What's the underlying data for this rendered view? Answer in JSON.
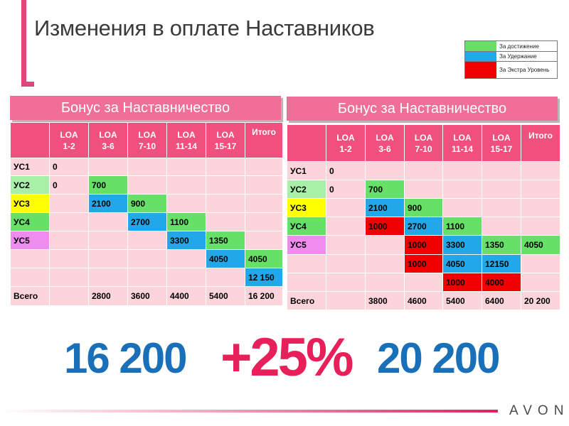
{
  "title": "Изменения в оплате Наставников",
  "legend": [
    {
      "label": "За достижение",
      "color": "#66e066"
    },
    {
      "label": "За Удержание",
      "color": "#22a8e8"
    },
    {
      "label": "За Экстра Уровень",
      "color": "#f00000"
    }
  ],
  "left_table": {
    "banner": "Бонус за Наставничество",
    "headers": [
      "",
      "LOA\n1-2",
      "LOA\n3-6",
      "LOA\n7-10",
      "LOA\n11-14",
      "LOA\n15-17",
      "Итого"
    ],
    "rows": [
      {
        "label": "УС1",
        "cells": [
          "0",
          "",
          "",
          "",
          "",
          ""
        ]
      },
      {
        "label": "УС2",
        "cells": [
          "0",
          "700",
          "",
          "",
          "",
          ""
        ]
      },
      {
        "label": "УС3",
        "cells": [
          "",
          "2100",
          "900",
          "",
          "",
          ""
        ]
      },
      {
        "label": "УС4",
        "cells": [
          "",
          "",
          "2700",
          "1100",
          "",
          ""
        ]
      },
      {
        "label": "УС5",
        "cells": [
          "",
          "",
          "",
          "3300",
          "1350",
          ""
        ]
      },
      {
        "label": "",
        "cells": [
          "",
          "",
          "",
          "",
          "4050",
          "4050"
        ]
      },
      {
        "label": "",
        "cells": [
          "",
          "",
          "",
          "",
          "",
          "12 150"
        ]
      },
      {
        "label": "Всего",
        "cells": [
          "",
          "2800",
          "3600",
          "4400",
          "5400",
          "16 200"
        ]
      }
    ]
  },
  "right_table": {
    "banner": "Бонус за Наставничество",
    "headers": [
      "",
      "LOA\n1-2",
      "LOA\n3-6",
      "LOA\n7-10",
      "LOA\n11-14",
      "LOA\n15-17",
      "Итого"
    ],
    "rows": [
      {
        "label": "УС1",
        "cells": [
          "0",
          "",
          "",
          "",
          "",
          ""
        ]
      },
      {
        "label": "УС2",
        "cells": [
          "0",
          "700",
          "",
          "",
          "",
          ""
        ]
      },
      {
        "label": "УС3",
        "cells": [
          "",
          "2100",
          "900",
          "",
          "",
          ""
        ]
      },
      {
        "label": "УС4",
        "cells": [
          "",
          "1000",
          "2700",
          "1100",
          "",
          ""
        ]
      },
      {
        "label": "УС5",
        "cells": [
          "",
          "",
          "1000",
          "3300",
          "1350",
          "4050"
        ]
      },
      {
        "label": "",
        "cells": [
          "",
          "",
          "1000",
          "4050",
          "12150",
          ""
        ]
      },
      {
        "label": "",
        "cells": [
          "",
          "",
          "",
          "1000",
          "4000",
          ""
        ]
      },
      {
        "label": "Всего",
        "cells": [
          "",
          "3800",
          "4600",
          "5400",
          "6400",
          "20 200"
        ]
      }
    ]
  },
  "total_before": "16 200",
  "increase": "+25%",
  "total_after": "20 200",
  "brand": "AVON"
}
